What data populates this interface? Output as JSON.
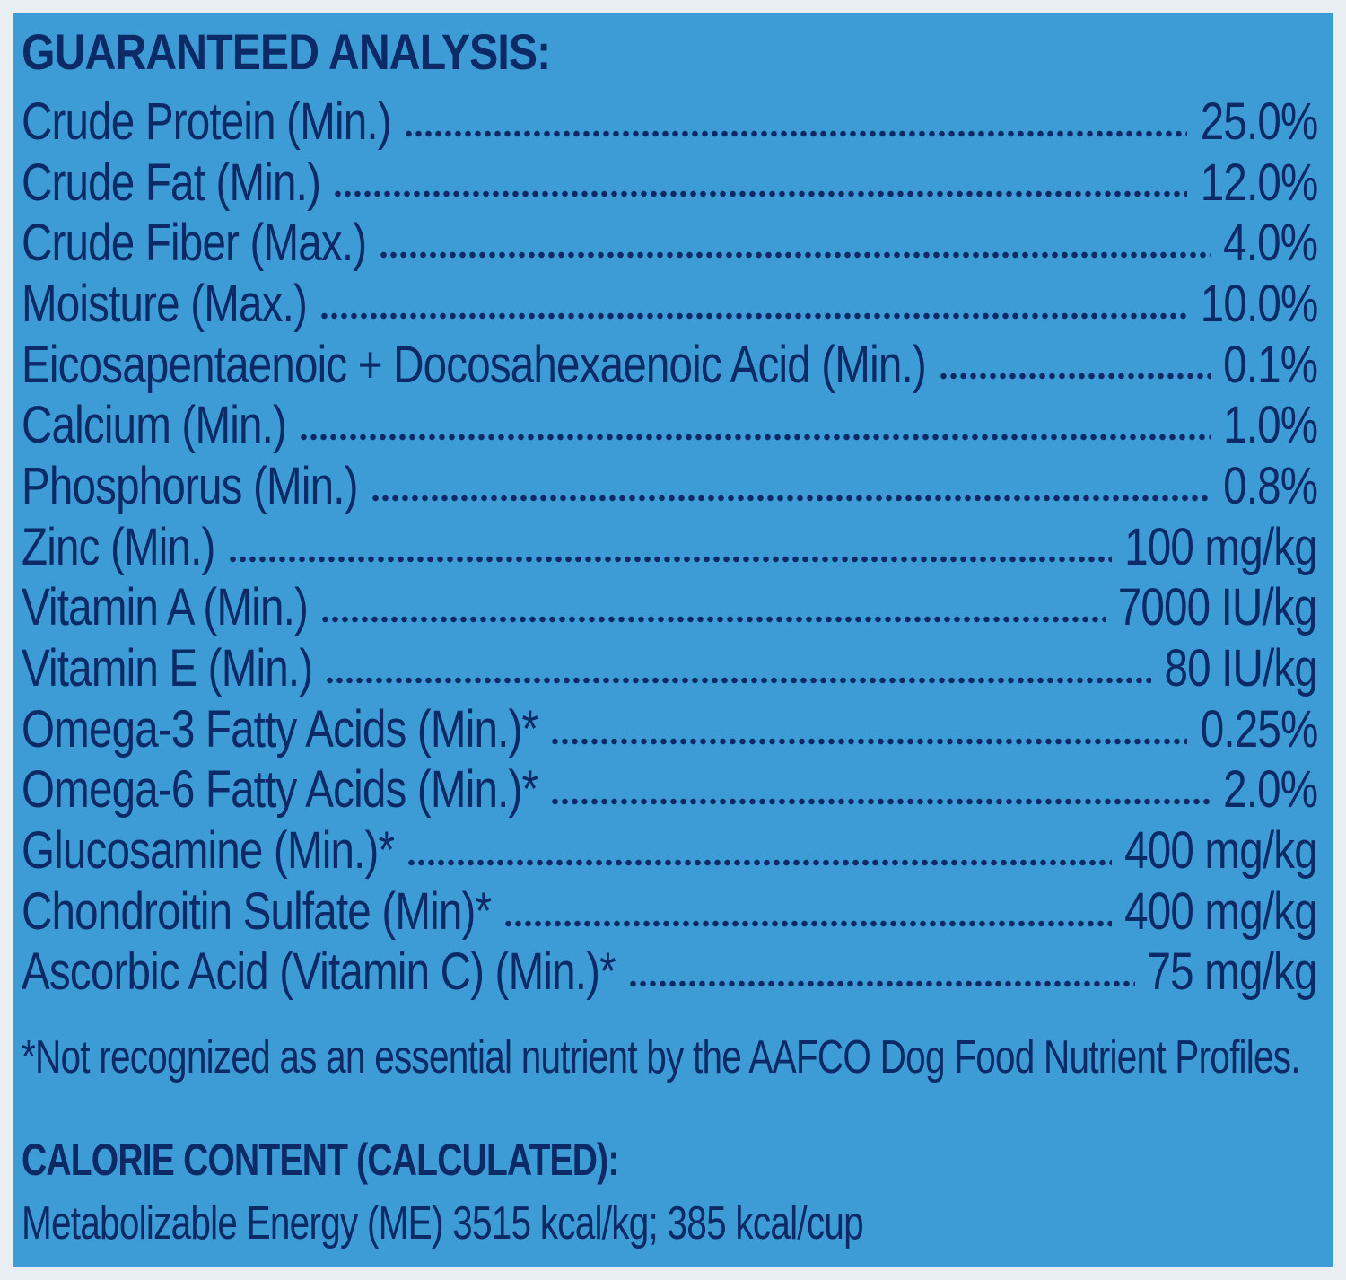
{
  "title": "GUARANTEED ANALYSIS:",
  "analysis": [
    {
      "label": "Crude Protein (Min.)",
      "value": "25.0%"
    },
    {
      "label": "Crude Fat (Min.)",
      "value": "12.0%"
    },
    {
      "label": "Crude Fiber (Max.)",
      "value": "4.0%"
    },
    {
      "label": "Moisture (Max.)",
      "value": "10.0%"
    },
    {
      "label": "Eicosapentaenoic + Docosahexaenoic Acid (Min.)",
      "value": "0.1%"
    },
    {
      "label": "Calcium (Min.)",
      "value": "1.0%"
    },
    {
      "label": "Phosphorus (Min.)",
      "value": "0.8%"
    },
    {
      "label": "Zinc (Min.)",
      "value": "100 mg/kg"
    },
    {
      "label": "Vitamin A (Min.)",
      "value": "7000 IU/kg"
    },
    {
      "label": "Vitamin E (Min.)",
      "value": "80 IU/kg"
    },
    {
      "label": "Omega-3 Fatty Acids (Min.)*",
      "value": "0.25%"
    },
    {
      "label": "Omega-6 Fatty Acids (Min.)*",
      "value": "2.0%"
    },
    {
      "label": "Glucosamine (Min.)*",
      "value": "400 mg/kg"
    },
    {
      "label": "Chondroitin Sulfate (Min)*",
      "value": "400 mg/kg"
    },
    {
      "label": "Ascorbic Acid (Vitamin C) (Min.)*",
      "value": "75 mg/kg"
    }
  ],
  "footnote": "*Not recognized as an essential nutrient by the AAFCO Dog Food Nutrient Profiles.",
  "calorie": {
    "title": "CALORIE CONTENT (CALCULATED):",
    "line": "Metabolizable Energy (ME) 3515 kcal/kg;  385 kcal/cup"
  },
  "colors": {
    "background": "#3d9bd6",
    "text": "#0c2a66",
    "border": "#e9eef3"
  }
}
